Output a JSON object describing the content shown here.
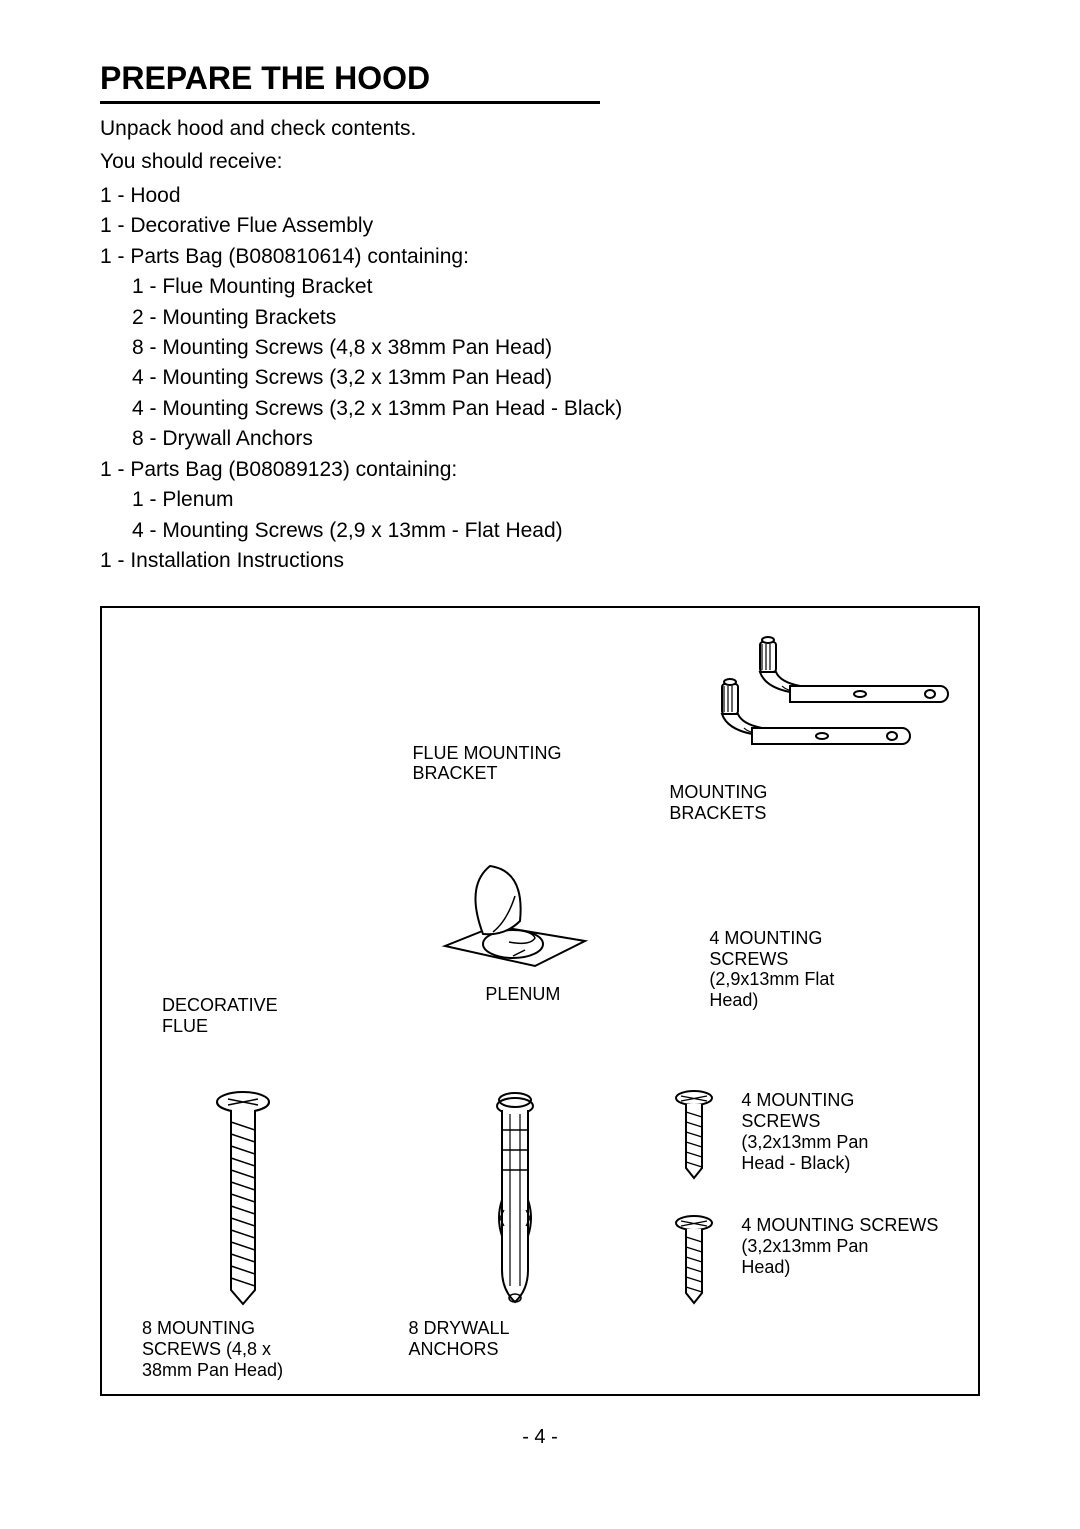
{
  "colors": {
    "text": "#000000",
    "bg": "#ffffff",
    "stroke": "#000000",
    "fill_light": "#ffffff",
    "fill_gray": "#e5e5e5"
  },
  "page_number": "- 4 -",
  "section_title": "PREPARE THE HOOD",
  "intro_lines": [
    "Unpack hood and check contents.",
    "You should receive:"
  ],
  "contents": [
    {
      "level": 0,
      "text": "1 - Hood"
    },
    {
      "level": 0,
      "text": "1 - Decorative Flue Assembly"
    },
    {
      "level": 0,
      "text": "1 - Parts Bag (B080810614) containing:"
    },
    {
      "level": 1,
      "text": "1 - Flue Mounting Bracket"
    },
    {
      "level": 1,
      "text": "2 - Mounting Brackets"
    },
    {
      "level": 1,
      "text": "8 - Mounting Screws (4,8 x 38mm Pan Head)"
    },
    {
      "level": 1,
      "text": "4 - Mounting Screws (3,2 x 13mm Pan Head)"
    },
    {
      "level": 1,
      "text": "4 - Mounting Screws (3,2 x 13mm Pan Head - Black)"
    },
    {
      "level": 1,
      "text": "8 - Drywall Anchors"
    },
    {
      "level": 0,
      "text": "1 - Parts Bag (B08089123) containing:"
    },
    {
      "level": 1,
      "text": "1 - Plenum"
    },
    {
      "level": 1,
      "text": "4 - Mounting Screws (2,9 x 13mm - Flat Head)"
    },
    {
      "level": 0,
      "text": "1 - Installation Instructions"
    }
  ],
  "diagram_labels": {
    "flue_mounting_bracket": "FLUE MOUNTING\nBRACKET",
    "mounting_brackets": "MOUNTING\nBRACKETS",
    "decorative_flue": "DECORATIVE\nFLUE",
    "plenum": "PLENUM",
    "flat_screws": "4 MOUNTING\nSCREWS\n(2,9x13mm Flat\nHead)",
    "screws_8": "8 MOUNTING\nSCREWS (4,8 x\n38mm Pan Head)",
    "anchors": "8 DRYWALL\nANCHORS",
    "screws_black": "4 MOUNTING\nSCREWS\n(3,2x13mm Pan\nHead - Black)",
    "screws_plain": "4 MOUNTING SCREWS\n(3,2x13mm Pan\nHead)"
  },
  "svg_style": {
    "stroke_width_thin": 1.5,
    "stroke_width_thick": 2.5,
    "stroke_width_med": 2
  }
}
